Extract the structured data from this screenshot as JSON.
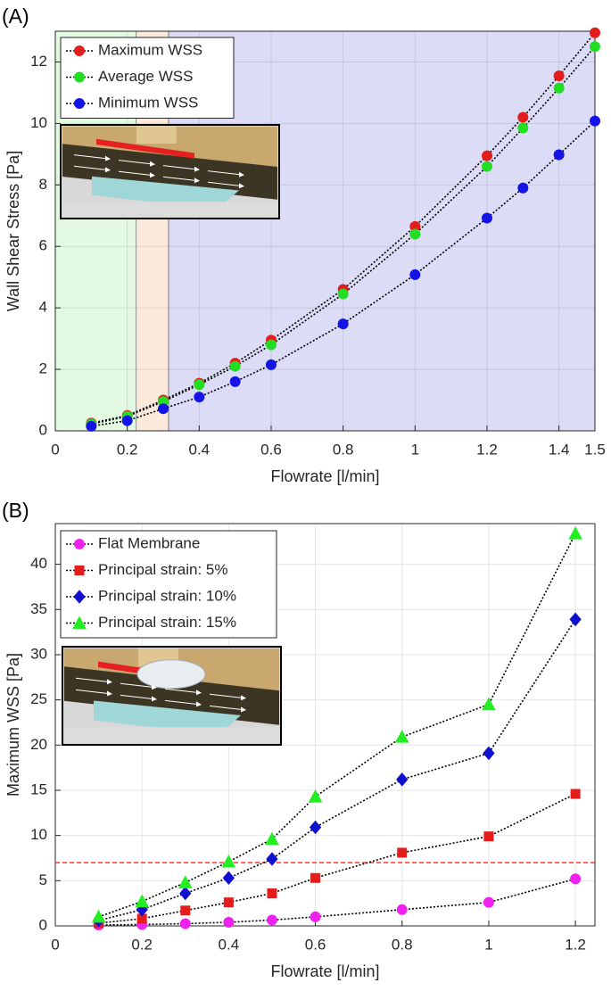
{
  "chart_data": [
    {
      "type": "line",
      "panel_label": "(A)",
      "x_label": "Flowrate [l/min]",
      "y_label": "Wall Shear Stress [Pa]",
      "x": [
        0.1,
        0.2,
        0.3,
        0.4,
        0.5,
        0.6,
        0.8,
        1,
        1.2,
        1.3,
        1.4,
        1.5
      ],
      "series": [
        {
          "name": "Maximum WSS",
          "color": "#e41c1c",
          "marker": "circle",
          "values": [
            0.25,
            0.5,
            1.0,
            1.55,
            2.2,
            2.95,
            4.6,
            6.65,
            8.95,
            10.2,
            11.55,
            12.95
          ]
        },
        {
          "name": "Average WSS",
          "color": "#22dd22",
          "marker": "circle",
          "values": [
            0.22,
            0.47,
            0.95,
            1.5,
            2.1,
            2.8,
            4.45,
            6.4,
            8.6,
            9.85,
            11.15,
            12.5
          ]
        },
        {
          "name": "Minimum WSS",
          "color": "#1414e6",
          "marker": "circle",
          "values": [
            0.15,
            0.33,
            0.72,
            1.1,
            1.6,
            2.15,
            3.48,
            5.08,
            6.92,
            7.9,
            8.98,
            10.08
          ]
        }
      ],
      "xlim": [
        0,
        1.5
      ],
      "ylim": [
        0,
        13
      ],
      "xticks": [
        0,
        0.2,
        0.4,
        0.6,
        0.8,
        1,
        1.2,
        1.4,
        1.5
      ],
      "yticks": [
        0,
        2,
        4,
        6,
        8,
        10,
        12
      ],
      "regions": [
        {
          "from": 0,
          "to": 0.225,
          "color": "#e3f9e1"
        },
        {
          "from": 0.225,
          "to": 0.315,
          "color": "#fbe9dc"
        },
        {
          "from": 0.315,
          "to": 1.5,
          "color": "#dcdcf6"
        }
      ],
      "grid": true,
      "line_style": "dotted",
      "legend": "upper-left"
    },
    {
      "type": "line",
      "panel_label": "(B)",
      "x_label": "Flowrate [l/min]",
      "y_label": "Maximum WSS [Pa]",
      "x": [
        0.1,
        0.2,
        0.3,
        0.4,
        0.5,
        0.6,
        0.8,
        1,
        1.2
      ],
      "series": [
        {
          "name": "Flat Membrane",
          "color": "#ee22ee",
          "marker": "circle",
          "values": [
            0.1,
            0.15,
            0.25,
            0.4,
            0.65,
            1.0,
            1.8,
            2.6,
            5.2
          ]
        },
        {
          "name": "Principal strain: 5%",
          "color": "#e41c1c",
          "marker": "square",
          "values": [
            0.3,
            0.8,
            1.7,
            2.6,
            3.6,
            5.3,
            8.1,
            9.9,
            14.6
          ]
        },
        {
          "name": "Principal strain: 10%",
          "color": "#1010d0",
          "marker": "diamond",
          "values": [
            0.6,
            1.8,
            3.6,
            5.3,
            7.4,
            10.9,
            16.2,
            19.1,
            33.9
          ]
        },
        {
          "name": "Principal strain: 15%",
          "color": "#22ee22",
          "marker": "triangle",
          "values": [
            1.0,
            2.7,
            4.8,
            7.1,
            9.6,
            14.3,
            20.9,
            24.5,
            43.4
          ]
        }
      ],
      "xlim": [
        0,
        1.245
      ],
      "ylim": [
        0,
        44.5
      ],
      "xticks": [
        0,
        0.2,
        0.4,
        0.6,
        0.8,
        1,
        1.2
      ],
      "yticks": [
        0,
        5,
        10,
        15,
        20,
        25,
        30,
        35,
        40
      ],
      "hline": {
        "value": 7,
        "color": "#ff2020"
      },
      "grid": true,
      "line_style": "dotted",
      "legend": "upper-left"
    }
  ]
}
